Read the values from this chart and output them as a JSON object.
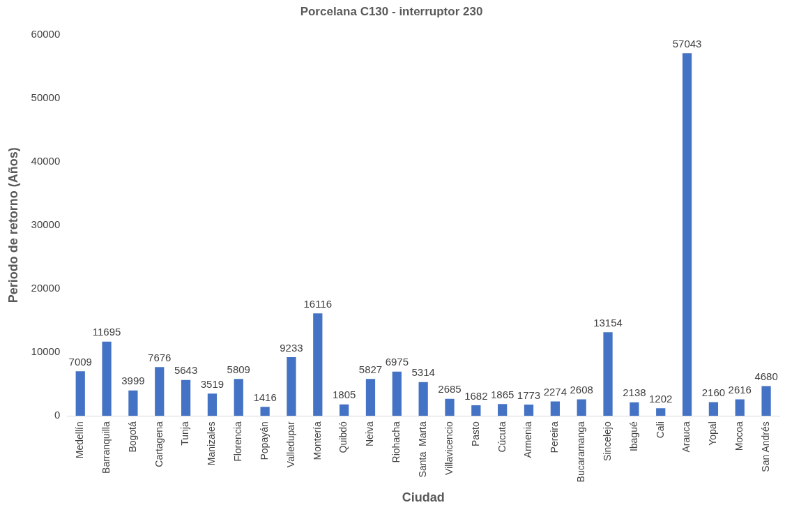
{
  "chart_data": {
    "type": "bar",
    "title": "Porcelana C130 - interruptor 230",
    "xlabel": "Ciudad",
    "ylabel": "Periodo de retorno (Años)",
    "categories": [
      "Medellín",
      "Barranquilla",
      "Bogotá",
      "Cartagena",
      "Tunja",
      "Manizales",
      "Florencia",
      "Popayán",
      "Valledupar",
      "Montería",
      "Quibdó",
      "Neiva",
      "Riohacha",
      "Santa  Marta",
      "Villavicencio",
      "Pasto",
      "Cúcuta",
      "Armenia",
      "Pereira",
      "Bucaramanga",
      "Sincelejo",
      "Ibagué",
      "Cali",
      "Arauca",
      "Yopal",
      "Mocoa",
      "San Andrés"
    ],
    "values": [
      7009,
      11695,
      3999,
      7676,
      5643,
      3519,
      5809,
      1416,
      9233,
      16116,
      1805,
      5827,
      6975,
      5314,
      2685,
      1682,
      1865,
      1773,
      2274,
      2608,
      13154,
      2138,
      1202,
      57043,
      2160,
      2616,
      4680
    ],
    "color": "#4472c4",
    "ylim": [
      0,
      60000
    ],
    "yticks": [
      0,
      10000,
      20000,
      30000,
      40000,
      50000,
      60000
    ],
    "grid": false,
    "data_labels": true
  }
}
